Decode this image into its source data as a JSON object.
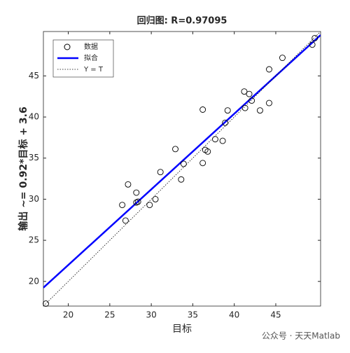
{
  "chart_data": {
    "type": "scatter",
    "title": "回归图: R=0.97095",
    "x_label": "目标",
    "y_label": "输出 ~= 0.92*目标 + 3.6",
    "x": [
      17.3,
      26.5,
      26.9,
      27.2,
      28.2,
      28.2,
      28.4,
      29.8,
      30.5,
      31.1,
      32.9,
      33.6,
      33.9,
      36.2,
      36.2,
      36.5,
      36.8,
      37.7,
      38.6,
      38.9,
      39.2,
      41.2,
      41.3,
      41.8,
      42.1,
      43.1,
      44.2,
      44.2,
      45.8,
      49.4,
      49.7
    ],
    "series": [
      {
        "name": "数据",
        "color": "#000000",
        "values": [
          17.3,
          29.3,
          27.4,
          31.8,
          29.6,
          30.8,
          29.7,
          29.3,
          30.0,
          33.3,
          36.1,
          32.4,
          34.3,
          34.4,
          40.9,
          36.0,
          35.8,
          37.3,
          37.1,
          39.3,
          40.8,
          43.1,
          41.1,
          42.8,
          42.0,
          40.8,
          45.8,
          41.7,
          47.2,
          48.8,
          49.6
        ]
      }
    ],
    "fit_line": {
      "name": "拟合",
      "color": "#0000ff",
      "slope": 0.92,
      "intercept": 3.6
    },
    "identity_line": {
      "name": "Y = T",
      "color": "#000000"
    },
    "xlim": [
      17.0,
      50.4
    ],
    "ylim": [
      17.0,
      50.4
    ],
    "xticks": [
      20,
      25,
      30,
      35,
      40,
      45
    ],
    "yticks": [
      20,
      25,
      30,
      35,
      40,
      45
    ],
    "grid": false,
    "legend": "upper-left"
  },
  "watermark": "公众号 · 天天Matlab"
}
